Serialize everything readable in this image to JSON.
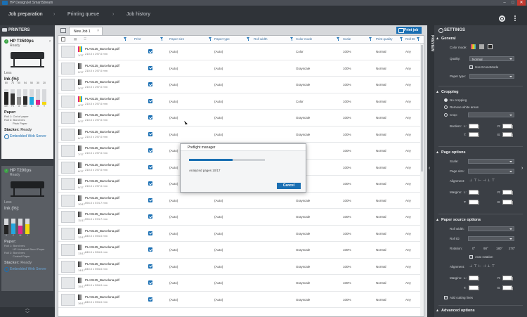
{
  "window": {
    "title": "HP DesignJet SmartStream",
    "controls": [
      "–",
      "□",
      "✕"
    ]
  },
  "nav": {
    "items": [
      {
        "label": "Job preparation",
        "active": true
      },
      {
        "label": "Printing queue",
        "active": false
      },
      {
        "label": "Job history",
        "active": false
      }
    ],
    "separator": "›"
  },
  "printers_panel": {
    "title": "PRINTERS",
    "printers": [
      {
        "name": "HP T3500ps",
        "status": "Ready",
        "less_label": "Less",
        "ink_label": "Ink (%):",
        "ink": [
          {
            "name": "MK",
            "pct": 80,
            "color": "#222222"
          },
          {
            "name": "PK",
            "pct": 74,
            "color": "#333333"
          },
          {
            "name": "G",
            "pct": 50,
            "color": "#8f8f8f"
          },
          {
            "name": "MK",
            "pct": 54,
            "color": "#2a2a2a"
          },
          {
            "name": "C",
            "pct": 50,
            "color": "#23a7e0"
          },
          {
            "name": "M",
            "pct": 30,
            "color": "#e0248a"
          },
          {
            "name": "Y",
            "pct": 20,
            "color": "#f4d80c"
          }
        ],
        "paper_label": "Paper:",
        "paper_lines": [
          "Roll 1: Out of paper",
          "Roll 2: Bond nes",
          "Plain Paper"
        ],
        "stacker_label": "Stacker:",
        "stacker_value": "Ready",
        "ews_label": "Embedded Web Server"
      },
      {
        "name": "HP T200ps",
        "status": "Ready",
        "less_label": "Less",
        "ink_label": "Ink (%):",
        "ink": [
          {
            "name": "K",
            "pct": 60,
            "color": "#222222"
          },
          {
            "name": "C",
            "pct": 70,
            "color": "#23a7e0"
          },
          {
            "name": "M",
            "pct": 55,
            "color": "#e0248a"
          },
          {
            "name": "Y",
            "pct": 65,
            "color": "#f4d80c"
          }
        ],
        "paper_label": "Paper:",
        "paper_lines": [
          "Roll 1: Bond nes",
          "HP Universal Bond Paper",
          "Roll 2: Bond nes",
          "Coated Paper"
        ],
        "stacker_label": "Stacker:",
        "stacker_value": "Ready",
        "ews_label": "Embedded Web Server"
      }
    ]
  },
  "job": {
    "tab_label": "New Job 1",
    "tab_close": "×",
    "print_button": "Print job",
    "columns": [
      "Print",
      "Paper size",
      "Paper type",
      "Roll width",
      "Color mode",
      "Scale",
      "Print quality",
      "Roll ID"
    ],
    "rows": [
      {
        "idx": "1/17",
        "file": "PLA0125_Barcelona.pdf",
        "size": "210.0 x 297.0 mm",
        "paper_size": "(Auto)",
        "paper_type": "(Auto)",
        "color": "Color",
        "scale": "100%",
        "quality": "Normal",
        "roll": "Any"
      },
      {
        "idx": "2/17",
        "file": "PLA0125_Barcelona.pdf",
        "size": "210.0 x 297.0 mm",
        "paper_size": "(Auto)",
        "paper_type": "(Auto)",
        "color": "Grayscale",
        "scale": "100%",
        "quality": "Normal",
        "roll": "Any"
      },
      {
        "idx": "3/17",
        "file": "PLA0125_Barcelona.pdf",
        "size": "210.0 x 297.0 mm",
        "paper_size": "(Auto)",
        "paper_type": "(Auto)",
        "color": "Grayscale",
        "scale": "100%",
        "quality": "Normal",
        "roll": "Any"
      },
      {
        "idx": "4/17",
        "file": "PLA0125_Barcelona.pdf",
        "size": "210.0 x 297.0 mm",
        "paper_size": "(Auto)",
        "paper_type": "(Auto)",
        "color": "Color",
        "scale": "100%",
        "quality": "Normal",
        "roll": "Any"
      },
      {
        "idx": "5/17",
        "file": "PLA0125_Barcelona.pdf",
        "size": "210.0 x 297.0 mm",
        "paper_size": "(Auto)",
        "paper_type": "(Auto)",
        "color": "Grayscale",
        "scale": "100%",
        "quality": "Normal",
        "roll": "Any"
      },
      {
        "idx": "6/17",
        "file": "PLA0125_Barcelona.pdf",
        "size": "210.0 x 297.0 mm",
        "paper_size": "(Auto)",
        "paper_type": "(Auto)",
        "color": "Grayscale",
        "scale": "100%",
        "quality": "Normal",
        "roll": "Any"
      },
      {
        "idx": "7/17",
        "file": "PLA0125_Barcelona.pdf",
        "size": "210.0 x 297.0 mm",
        "paper_size": "(Auto)",
        "paper_type": "(Auto)",
        "color": "",
        "scale": "100%",
        "quality": "Normal",
        "roll": "Any"
      },
      {
        "idx": "8/17",
        "file": "PLA0125_Barcelona.pdf",
        "size": "210.0 x 297.0 mm",
        "paper_size": "(Auto)",
        "paper_type": "(Auto)",
        "color": "",
        "scale": "100%",
        "quality": "Normal",
        "roll": "Any"
      },
      {
        "idx": "9/17",
        "file": "PLA0125_Barcelona.pdf",
        "size": "210.0 x 297.0 mm",
        "paper_size": "(Auto)",
        "paper_type": "(Auto)",
        "color": "",
        "scale": "100%",
        "quality": "Normal",
        "roll": "Any"
      },
      {
        "idx": "10/17",
        "file": "PLA0125_Barcelona.pdf",
        "size": "594.0 x 574.7 mm",
        "paper_size": "(Auto)",
        "paper_type": "(Auto)",
        "color": "Grayscale",
        "scale": "100%",
        "quality": "Normal",
        "roll": "Any"
      },
      {
        "idx": "11/17",
        "file": "PLA0125_Barcelona.pdf",
        "size": "594.0 x 574.7 mm",
        "paper_size": "(Auto)",
        "paper_type": "(Auto)",
        "color": "Grayscale",
        "scale": "100%",
        "quality": "Normal",
        "roll": "Any"
      },
      {
        "idx": "12/17",
        "file": "PLA0125_Barcelona.pdf",
        "size": "840.0 x 594.0 mm",
        "paper_size": "(Auto)",
        "paper_type": "(Auto)",
        "color": "Grayscale",
        "scale": "100%",
        "quality": "Normal",
        "roll": "Any"
      },
      {
        "idx": "13/17",
        "file": "PLA0125_Barcelona.pdf",
        "size": "840.0 x 594.0 mm",
        "paper_size": "(Auto)",
        "paper_type": "(Auto)",
        "color": "Grayscale",
        "scale": "100%",
        "quality": "Normal",
        "roll": "Any"
      },
      {
        "idx": "14/17",
        "file": "PLA0125_Barcelona.pdf",
        "size": "840.0 x 594.0 mm",
        "paper_size": "(Auto)",
        "paper_type": "(Auto)",
        "color": "Grayscale",
        "scale": "100%",
        "quality": "Normal",
        "roll": "Any"
      },
      {
        "idx": "15/17",
        "file": "PLA0125_Barcelona.pdf",
        "size": "840.0 x 594.0 mm",
        "paper_size": "(Auto)",
        "paper_type": "(Auto)",
        "color": "Grayscale",
        "scale": "100%",
        "quality": "Normal",
        "roll": "Any"
      },
      {
        "idx": "16/17",
        "file": "PLA0125_Barcelona.pdf",
        "size": "840.0 x 594.0 mm",
        "paper_size": "(Auto)",
        "paper_type": "(Auto)",
        "color": "Grayscale",
        "scale": "100%",
        "quality": "Normal",
        "roll": "Any"
      }
    ]
  },
  "preflight": {
    "title": "Preflight manager",
    "progress": 0.57,
    "status": "Analyzed pages 10/17",
    "cancel": "Cancel"
  },
  "preview_label": "PREVIEW",
  "settings": {
    "title": "SETTINGS",
    "general": {
      "title": "General",
      "color_mode_label": "Color mode:",
      "quality_label": "Quality:",
      "quality_value": "Normal",
      "econo_label": "Use EconoMode",
      "paper_type_label": "Paper type:"
    },
    "cropping": {
      "title": "Cropping",
      "options": [
        "No cropping",
        "Remove white areas",
        "Crop:"
      ],
      "borders_label": "Borders:",
      "l": "L:",
      "r": "R:",
      "t": "T:",
      "b": "B:"
    },
    "page_options": {
      "title": "Page options",
      "scale_label": "Scale:",
      "page_size_label": "Page size:",
      "alignment_label": "Alignment:",
      "margins_label": "Margins:",
      "l": "L:",
      "r": "R:",
      "t": "T:",
      "b": "B:"
    },
    "paper_source": {
      "title": "Paper source options",
      "roll_width_label": "Roll width:",
      "roll_id_label": "Roll ID:",
      "rotation_label": "Rotation:",
      "rotations": [
        "0°",
        "90°",
        "180°",
        "270°"
      ],
      "auto_rotation_label": "Auto rotation",
      "alignment_label": "Alignment:",
      "margins_label": "Margins:",
      "l": "L:",
      "r": "R:",
      "t": "T:",
      "b": "B:",
      "cutting_lines_label": "Add cutting lines"
    },
    "advanced": {
      "title": "Advanced options"
    }
  }
}
